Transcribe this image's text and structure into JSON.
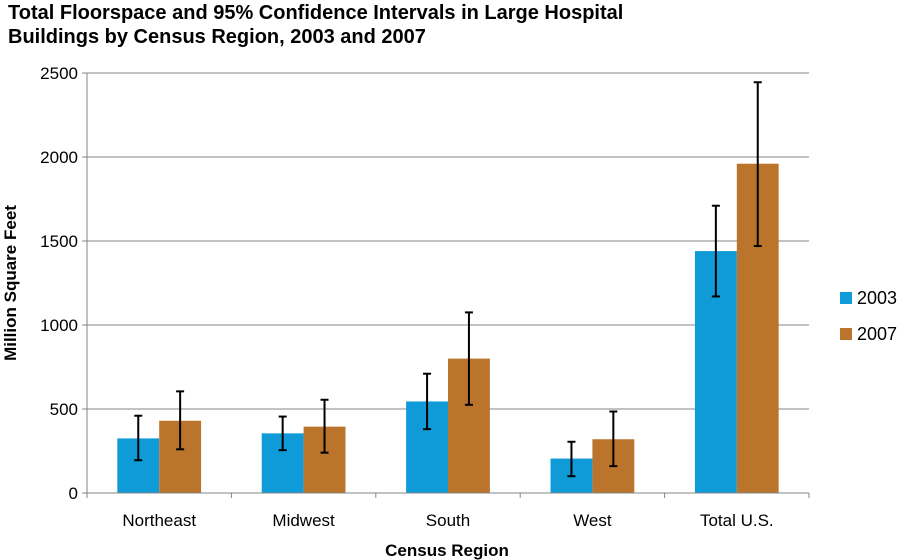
{
  "chart_data": {
    "type": "bar",
    "title_lines": [
      "Total Floorspace and 95% Confidence Intervals in Large Hospital",
      "Buildings by Census Region, 2003 and 2007"
    ],
    "xlabel": "Census Region",
    "ylabel": "Million Square Feet",
    "categories": [
      "Northeast",
      "Midwest",
      "South",
      "West",
      "Total U.S."
    ],
    "ylim": [
      0,
      2500
    ],
    "yticks": [
      0,
      500,
      1000,
      1500,
      2000,
      2500
    ],
    "grid": true,
    "legend_position": "right",
    "series": [
      {
        "name": "2003",
        "color": "#0f9ad8",
        "values": [
          325,
          355,
          545,
          205,
          1440
        ],
        "ci_low": [
          195,
          255,
          380,
          100,
          1170
        ],
        "ci_high": [
          460,
          455,
          710,
          305,
          1710
        ]
      },
      {
        "name": "2007",
        "color": "#bb742c",
        "values": [
          430,
          395,
          800,
          320,
          1960
        ],
        "ci_low": [
          260,
          240,
          525,
          160,
          1470
        ],
        "ci_high": [
          605,
          555,
          1075,
          485,
          2445
        ]
      }
    ]
  }
}
